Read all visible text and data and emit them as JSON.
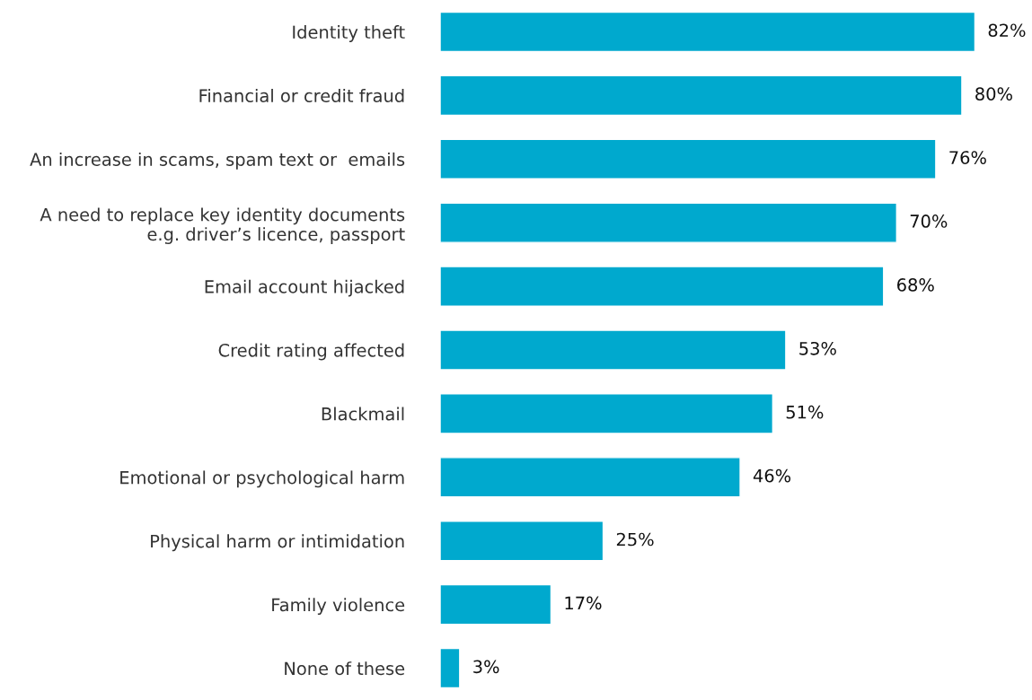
{
  "chart_data": {
    "type": "bar",
    "orientation": "horizontal",
    "categories": [
      "Identity theft",
      "Financial or credit fraud",
      "An increase in scams, spam text or  emails",
      "A need to replace key identity documents\ne.g. driver’s licence, passport",
      "Email account hijacked",
      "Credit rating affected",
      "Blackmail",
      "Emotional or psychological harm",
      "Physical harm or intimidation",
      "Family violence",
      "None of these"
    ],
    "values": [
      82,
      80,
      76,
      70,
      68,
      53,
      51,
      46,
      25,
      17,
      3
    ],
    "value_labels": [
      "82%",
      "80%",
      "76%",
      "70%",
      "68%",
      "53%",
      "51%",
      "46%",
      "25%",
      "17%",
      "3%"
    ],
    "color": "#00a9ce",
    "grid": false
  }
}
